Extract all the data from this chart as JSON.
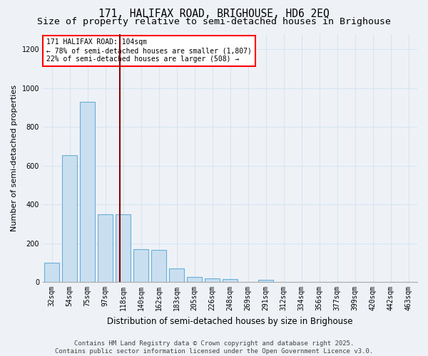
{
  "title1": "171, HALIFAX ROAD, BRIGHOUSE, HD6 2EQ",
  "title2": "Size of property relative to semi-detached houses in Brighouse",
  "xlabel": "Distribution of semi-detached houses by size in Brighouse",
  "ylabel": "Number of semi-detached properties",
  "categories": [
    "32sqm",
    "54sqm",
    "75sqm",
    "97sqm",
    "118sqm",
    "140sqm",
    "162sqm",
    "183sqm",
    "205sqm",
    "226sqm",
    "248sqm",
    "269sqm",
    "291sqm",
    "312sqm",
    "334sqm",
    "356sqm",
    "377sqm",
    "399sqm",
    "420sqm",
    "442sqm",
    "463sqm"
  ],
  "values": [
    100,
    655,
    930,
    350,
    350,
    170,
    165,
    70,
    25,
    18,
    15,
    0,
    12,
    0,
    0,
    0,
    0,
    0,
    0,
    0,
    0
  ],
  "bar_color": "#c9dff0",
  "bar_edge_color": "#6aaed6",
  "bg_color": "#eef2f7",
  "grid_color": "#d8e4f0",
  "annotation_line1": "171 HALIFAX ROAD: 104sqm",
  "annotation_line2": "← 78% of semi-detached houses are smaller (1,807)",
  "annotation_line3": "22% of semi-detached houses are larger (508) →",
  "vline_x": 3.82,
  "vline_color": "#8b0000",
  "ylim": [
    0,
    1280
  ],
  "yticks": [
    0,
    200,
    400,
    600,
    800,
    1000,
    1200
  ],
  "footer": "Contains HM Land Registry data © Crown copyright and database right 2025.\nContains public sector information licensed under the Open Government Licence v3.0.",
  "title_fontsize": 10.5,
  "subtitle_fontsize": 9.5,
  "ylabel_fontsize": 8,
  "xlabel_fontsize": 8.5,
  "tick_fontsize": 7,
  "annot_fontsize": 7,
  "footer_fontsize": 6.5
}
